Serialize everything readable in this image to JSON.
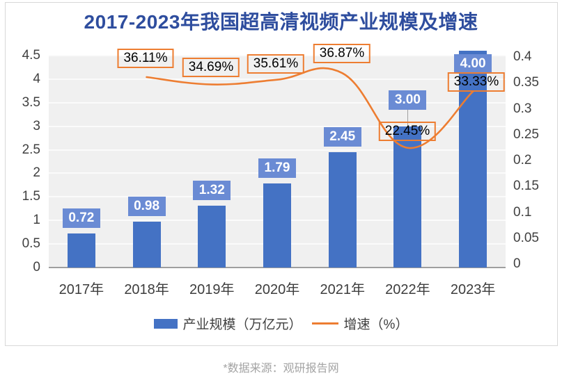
{
  "title": "2017-2023年我国超高清视频产业规模及增速",
  "source_note": "*数据来源：观研报告网",
  "colors": {
    "title": "#2E4D9E",
    "bar": "#4472C4",
    "bar_label_badge": "#6A8BD4",
    "line": "#ED7D31",
    "growth_label_border": "#ED7D31",
    "plot_background": "#F0F0F0",
    "axis_text": "#404040"
  },
  "chart_data": {
    "type": "bar+line",
    "title": "2017-2023年我国超高清视频产业规模及增速",
    "categories": [
      "2017年",
      "2018年",
      "2019年",
      "2020年",
      "2021年",
      "2022年",
      "2023年"
    ],
    "series": [
      {
        "name": "产业规模（万亿元）",
        "type": "bar",
        "axis": "left",
        "values": [
          0.72,
          0.98,
          1.32,
          1.79,
          2.45,
          3.0,
          4.0
        ],
        "labels": [
          "0.72",
          "0.98",
          "1.32",
          "1.79",
          "2.45",
          "3.00",
          "4.00"
        ]
      },
      {
        "name": "增速（%）",
        "type": "line",
        "axis": "right",
        "values": [
          null,
          36.11,
          34.69,
          35.61,
          36.87,
          22.45,
          33.33
        ],
        "labels": [
          null,
          "36.11%",
          "34.69%",
          "35.61%",
          "36.87%",
          "22.45%",
          "33.33%"
        ]
      }
    ],
    "left_axis": {
      "min": 0,
      "max": 4.5,
      "ticks": [
        "4.5",
        "4",
        "3.5",
        "3",
        "2.5",
        "2",
        "1.5",
        "1",
        "0.5",
        "0"
      ]
    },
    "right_axis": {
      "min": 0,
      "max": 0.4,
      "ticks": [
        "0.4",
        "0.35",
        "0.3",
        "0.25",
        "0.2",
        "0.15",
        "0.1",
        "0.05",
        "0"
      ]
    },
    "grid": true,
    "legend_position": "bottom"
  }
}
